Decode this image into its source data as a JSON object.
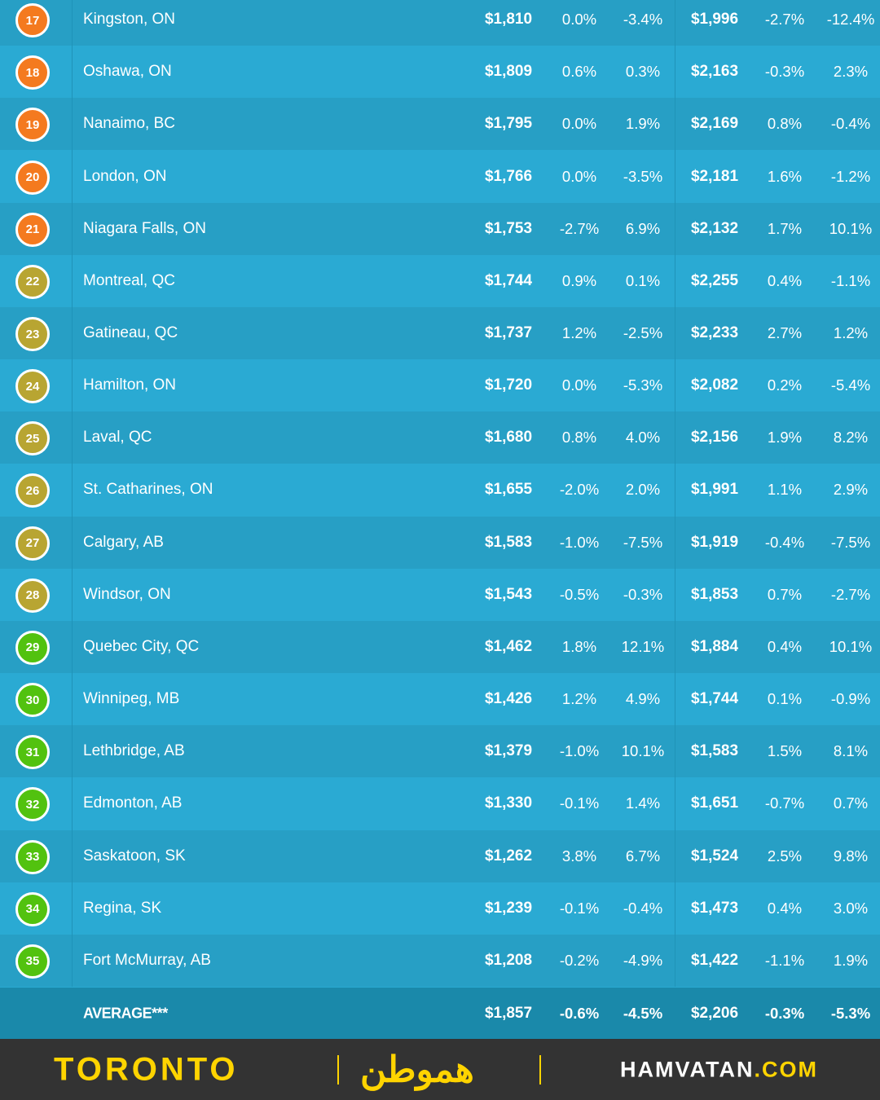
{
  "colors": {
    "orange": "#f47a1f",
    "olive": "#b8a532",
    "green": "#52c20f",
    "accent": "#ffd400"
  },
  "rows": [
    {
      "rank": "17",
      "city": "Kingston, ON",
      "p1": "$1,810",
      "c1": "0.0%",
      "c2": "-3.4%",
      "p2": "$1,996",
      "c3": "-2.7%",
      "c4": "-12.4%",
      "tier": "orange"
    },
    {
      "rank": "18",
      "city": "Oshawa, ON",
      "p1": "$1,809",
      "c1": "0.6%",
      "c2": "0.3%",
      "p2": "$2,163",
      "c3": "-0.3%",
      "c4": "2.3%",
      "tier": "orange"
    },
    {
      "rank": "19",
      "city": "Nanaimo, BC",
      "p1": "$1,795",
      "c1": "0.0%",
      "c2": "1.9%",
      "p2": "$2,169",
      "c3": "0.8%",
      "c4": "-0.4%",
      "tier": "orange"
    },
    {
      "rank": "20",
      "city": "London, ON",
      "p1": "$1,766",
      "c1": "0.0%",
      "c2": "-3.5%",
      "p2": "$2,181",
      "c3": "1.6%",
      "c4": "-1.2%",
      "tier": "orange"
    },
    {
      "rank": "21",
      "city": "Niagara Falls, ON",
      "p1": "$1,753",
      "c1": "-2.7%",
      "c2": "6.9%",
      "p2": "$2,132",
      "c3": "1.7%",
      "c4": "10.1%",
      "tier": "orange"
    },
    {
      "rank": "22",
      "city": "Montreal, QC",
      "p1": "$1,744",
      "c1": "0.9%",
      "c2": "0.1%",
      "p2": "$2,255",
      "c3": "0.4%",
      "c4": "-1.1%",
      "tier": "olive"
    },
    {
      "rank": "23",
      "city": "Gatineau, QC",
      "p1": "$1,737",
      "c1": "1.2%",
      "c2": "-2.5%",
      "p2": "$2,233",
      "c3": "2.7%",
      "c4": "1.2%",
      "tier": "olive"
    },
    {
      "rank": "24",
      "city": "Hamilton, ON",
      "p1": "$1,720",
      "c1": "0.0%",
      "c2": "-5.3%",
      "p2": "$2,082",
      "c3": "0.2%",
      "c4": "-5.4%",
      "tier": "olive"
    },
    {
      "rank": "25",
      "city": "Laval, QC",
      "p1": "$1,680",
      "c1": "0.8%",
      "c2": "4.0%",
      "p2": "$2,156",
      "c3": "1.9%",
      "c4": "8.2%",
      "tier": "olive"
    },
    {
      "rank": "26",
      "city": "St. Catharines, ON",
      "p1": "$1,655",
      "c1": "-2.0%",
      "c2": "2.0%",
      "p2": "$1,991",
      "c3": "1.1%",
      "c4": "2.9%",
      "tier": "olive"
    },
    {
      "rank": "27",
      "city": "Calgary, AB",
      "p1": "$1,583",
      "c1": "-1.0%",
      "c2": "-7.5%",
      "p2": "$1,919",
      "c3": "-0.4%",
      "c4": "-7.5%",
      "tier": "olive"
    },
    {
      "rank": "28",
      "city": "Windsor, ON",
      "p1": "$1,543",
      "c1": "-0.5%",
      "c2": "-0.3%",
      "p2": "$1,853",
      "c3": "0.7%",
      "c4": "-2.7%",
      "tier": "olive"
    },
    {
      "rank": "29",
      "city": "Quebec City, QC",
      "p1": "$1,462",
      "c1": "1.8%",
      "c2": "12.1%",
      "p2": "$1,884",
      "c3": "0.4%",
      "c4": "10.1%",
      "tier": "green"
    },
    {
      "rank": "30",
      "city": "Winnipeg, MB",
      "p1": "$1,426",
      "c1": "1.2%",
      "c2": "4.9%",
      "p2": "$1,744",
      "c3": "0.1%",
      "c4": "-0.9%",
      "tier": "green"
    },
    {
      "rank": "31",
      "city": "Lethbridge, AB",
      "p1": "$1,379",
      "c1": "-1.0%",
      "c2": "10.1%",
      "p2": "$1,583",
      "c3": "1.5%",
      "c4": "8.1%",
      "tier": "green"
    },
    {
      "rank": "32",
      "city": "Edmonton, AB",
      "p1": "$1,330",
      "c1": "-0.1%",
      "c2": "1.4%",
      "p2": "$1,651",
      "c3": "-0.7%",
      "c4": "0.7%",
      "tier": "green"
    },
    {
      "rank": "33",
      "city": "Saskatoon, SK",
      "p1": "$1,262",
      "c1": "3.8%",
      "c2": "6.7%",
      "p2": "$1,524",
      "c3": "2.5%",
      "c4": "9.8%",
      "tier": "green"
    },
    {
      "rank": "34",
      "city": "Regina, SK",
      "p1": "$1,239",
      "c1": "-0.1%",
      "c2": "-0.4%",
      "p2": "$1,473",
      "c3": "0.4%",
      "c4": "3.0%",
      "tier": "green"
    },
    {
      "rank": "35",
      "city": "Fort McMurray, AB",
      "p1": "$1,208",
      "c1": "-0.2%",
      "c2": "-4.9%",
      "p2": "$1,422",
      "c3": "-1.1%",
      "c4": "1.9%",
      "tier": "green"
    }
  ],
  "average": {
    "label": "AVERAGE***",
    "p1": "$1,857",
    "c1": "-0.6%",
    "c2": "-4.5%",
    "p2": "$2,206",
    "c3": "-0.3%",
    "c4": "-5.3%"
  },
  "footer": {
    "city": "TORONTO",
    "logo": "هموطن",
    "site_main": "HAMVATAN",
    "site_tld": ".COM"
  }
}
